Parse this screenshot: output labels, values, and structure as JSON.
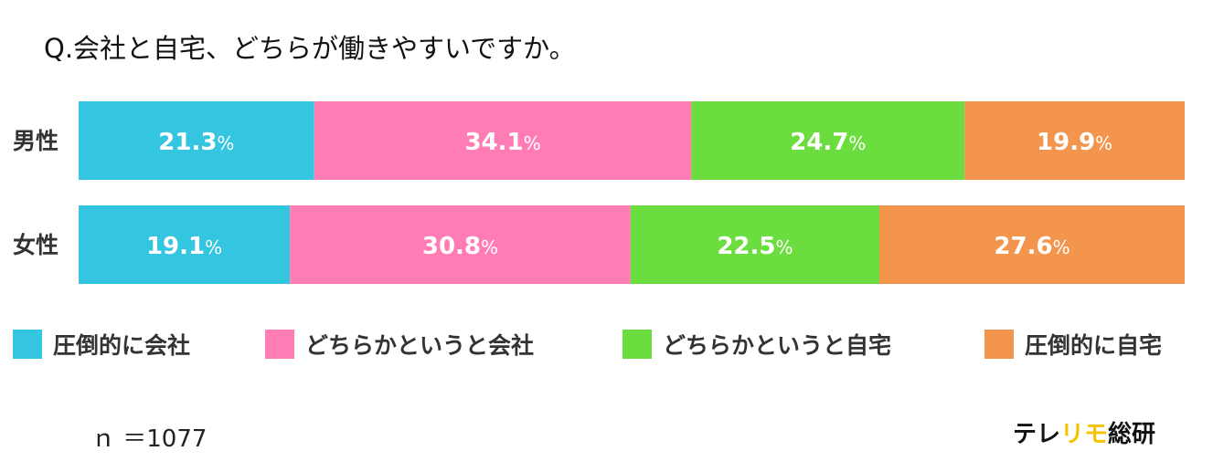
{
  "question": "Q.会社と自宅、どちらが働きやすいですか。",
  "sample_size": "ｎ ＝1077",
  "brand": {
    "part1": "テレ",
    "part2": "リモ",
    "part3": "総研"
  },
  "colors": {
    "overwhelming_office": "#34c6e0",
    "somewhat_office": "#ff7db4",
    "somewhat_home": "#6bdd3e",
    "overwhelming_home": "#f3954c",
    "brand_highlight": "#f5c400"
  },
  "chart_data": {
    "type": "bar",
    "orientation": "horizontal-stacked-100",
    "title": "Q.会社と自宅、どちらが働きやすいですか。",
    "categories": [
      "男性",
      "女性"
    ],
    "unit": "%",
    "xlim": [
      0,
      100
    ],
    "grid": false,
    "legend_position": "bottom",
    "series": [
      {
        "name": "圧倒的に会社",
        "color": "#34c6e0",
        "values": [
          21.3,
          19.1
        ]
      },
      {
        "name": "どちらかというと会社",
        "color": "#ff7db4",
        "values": [
          34.1,
          30.8
        ]
      },
      {
        "name": "どちらかというと自宅",
        "color": "#6bdd3e",
        "values": [
          24.7,
          22.5
        ]
      },
      {
        "name": "圧倒的に自宅",
        "color": "#f3954c",
        "values": [
          19.9,
          27.6
        ]
      }
    ],
    "note": "ｎ ＝1077"
  }
}
